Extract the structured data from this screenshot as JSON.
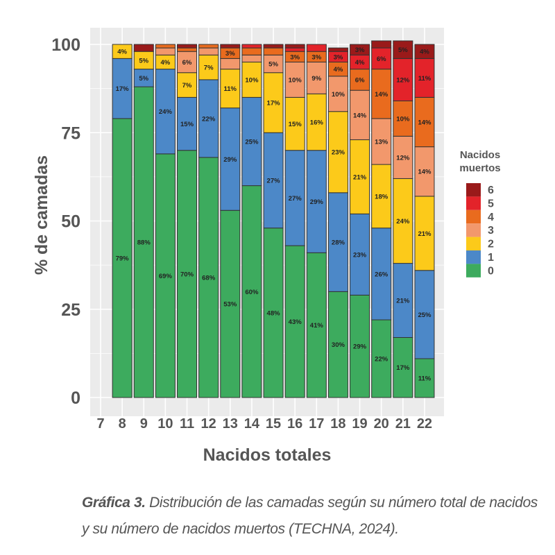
{
  "chart_data": {
    "type": "bar",
    "stacked": true,
    "xlabel": "Nacidos totales",
    "ylabel": "% de camadas",
    "ylim": [
      0,
      100
    ],
    "yticks": [
      0,
      25,
      50,
      75,
      100
    ],
    "grid": true,
    "legend": {
      "title": "Nacidos muertos",
      "placement": "right"
    },
    "categories": [
      "7",
      "8",
      "9",
      "10",
      "11",
      "12",
      "13",
      "14",
      "15",
      "16",
      "17",
      "18",
      "19",
      "20",
      "21",
      "22"
    ],
    "series": [
      {
        "name": "0",
        "color": "#3dab5e",
        "values": [
          0,
          79,
          88,
          69,
          70,
          68,
          53,
          60,
          48,
          43,
          41,
          30,
          29,
          22,
          17,
          11
        ],
        "labels": [
          null,
          "79%",
          "88%",
          "69%",
          "70%",
          "68%",
          "53%",
          "60%",
          "48%",
          "43%",
          "41%",
          "30%",
          "29%",
          "22%",
          "17%",
          "11%"
        ]
      },
      {
        "name": "1",
        "color": "#4c88c8",
        "values": [
          0,
          17,
          5,
          24,
          15,
          22,
          29,
          25,
          27,
          27,
          29,
          28,
          23,
          26,
          21,
          25
        ],
        "labels": [
          null,
          "17%",
          "5%",
          "24%",
          "15%",
          "22%",
          "29%",
          "25%",
          "27%",
          "27%",
          "29%",
          "28%",
          "23%",
          "26%",
          "21%",
          "25%"
        ]
      },
      {
        "name": "2",
        "color": "#fcca1a",
        "values": [
          0,
          4,
          5,
          4,
          7,
          7,
          11,
          10,
          17,
          15,
          16,
          23,
          21,
          18,
          24,
          21
        ],
        "labels": [
          null,
          "4%",
          "5%",
          "4%",
          "7%",
          "7%",
          "11%",
          "10%",
          "17%",
          "15%",
          "16%",
          "23%",
          "21%",
          "18%",
          "24%",
          "21%"
        ]
      },
      {
        "name": "3",
        "color": "#f2986c",
        "values": [
          0,
          0,
          0,
          2,
          6,
          2,
          3,
          2,
          5,
          10,
          9,
          10,
          14,
          13,
          12,
          14
        ],
        "labels": [
          null,
          null,
          null,
          null,
          "6%",
          null,
          null,
          null,
          "5%",
          "10%",
          "9%",
          "10%",
          "14%",
          "13%",
          "12%",
          "14%"
        ]
      },
      {
        "name": "4",
        "color": "#e96b1e",
        "values": [
          0,
          0,
          0,
          1,
          1,
          1,
          3,
          2,
          2,
          3,
          3,
          4,
          6,
          14,
          10,
          14
        ],
        "labels": [
          null,
          null,
          null,
          null,
          null,
          null,
          "3%",
          null,
          null,
          "3%",
          "3%",
          "4%",
          "6%",
          "14%",
          "10%",
          "14%"
        ]
      },
      {
        "name": "5",
        "color": "#e3232a",
        "values": [
          0,
          0,
          0,
          0,
          0,
          0,
          0,
          1,
          0,
          1,
          2,
          3,
          4,
          6,
          12,
          11
        ],
        "labels": [
          null,
          null,
          null,
          null,
          null,
          null,
          null,
          null,
          null,
          null,
          null,
          "3%",
          "4%",
          "6%",
          "12%",
          "11%"
        ]
      },
      {
        "name": "6",
        "color": "#9a1a1a",
        "values": [
          0,
          0,
          2,
          0,
          1,
          0,
          1,
          0,
          1,
          1,
          0,
          1,
          3,
          2,
          5,
          4
        ],
        "labels": [
          null,
          null,
          null,
          null,
          null,
          null,
          null,
          null,
          null,
          null,
          null,
          null,
          "3%",
          null,
          "5%",
          "4%"
        ]
      }
    ]
  },
  "caption": {
    "label": "Gráfica 3.",
    "text": " Distribución de las camadas según su número total de nacidos y su número de nacidos muertos (TECHNA, 2024)."
  }
}
